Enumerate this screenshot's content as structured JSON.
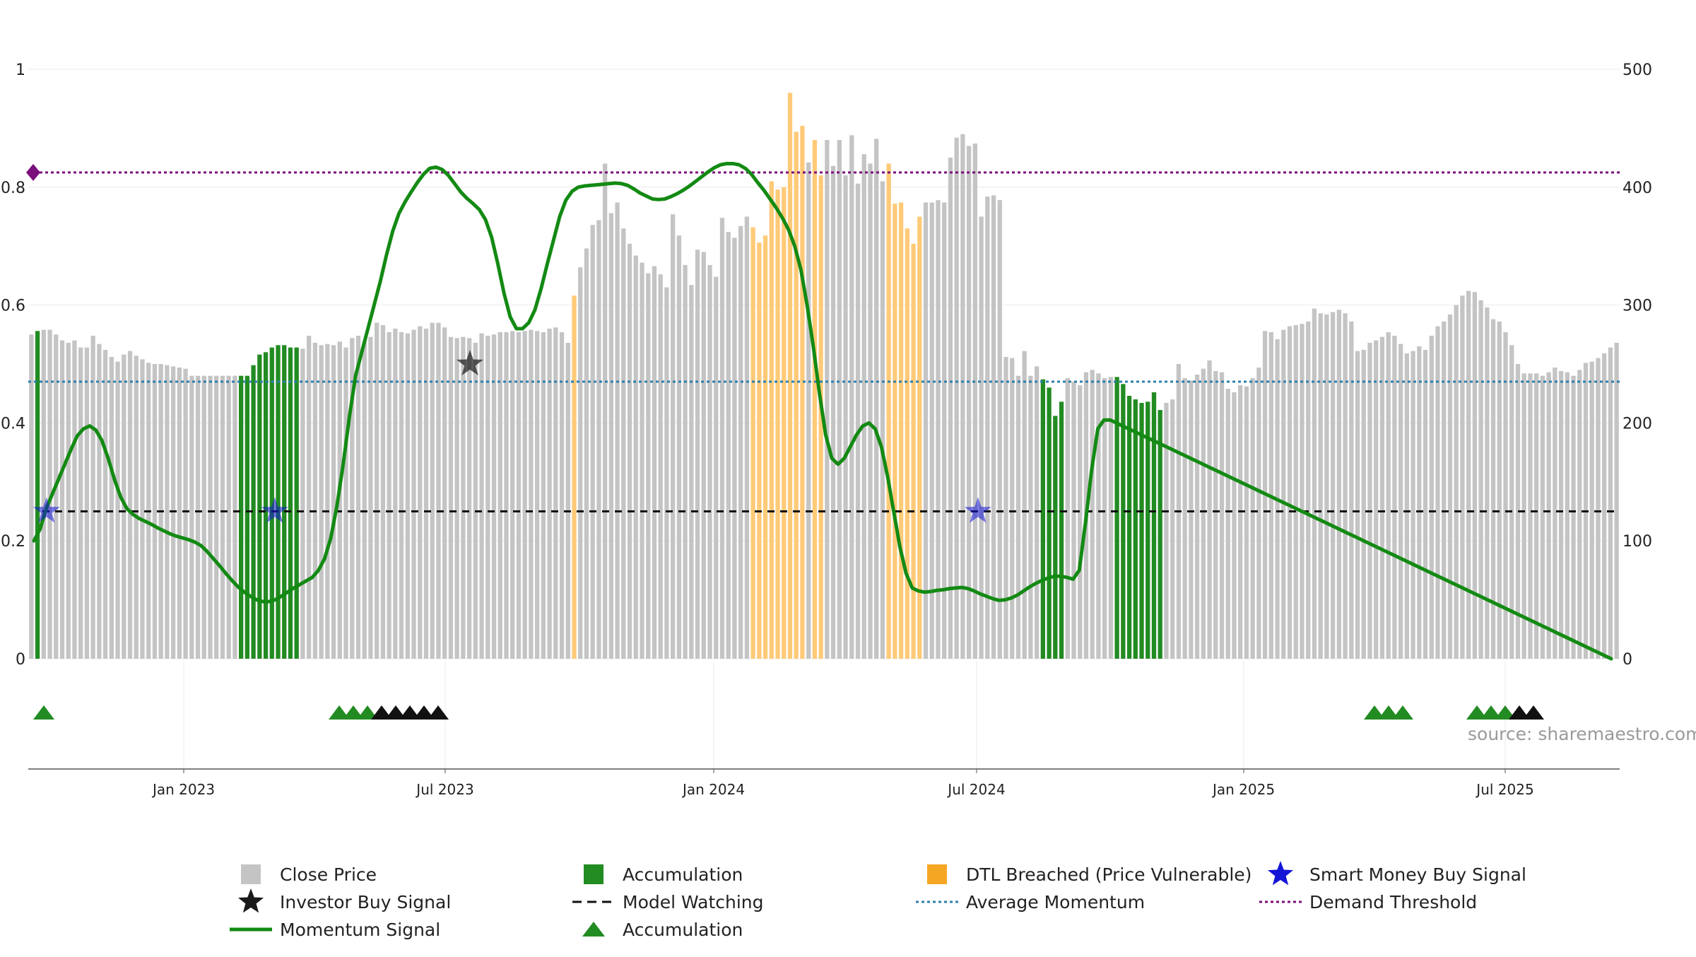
{
  "chart_data": {
    "type": "bar",
    "source_text": "source: sharemaestro.com",
    "x_ticks": [
      "Jan 2023",
      "Jul 2023",
      "Jan 2024",
      "Jul 2024",
      "Jan 2025",
      "Jul 2025"
    ],
    "left_axis": {
      "ylim": [
        0,
        1
      ],
      "ticks": [
        "0",
        "0.2",
        "0.4",
        "0.6",
        "0.8",
        "1"
      ]
    },
    "right_axis": {
      "ylim": [
        0,
        500
      ],
      "ticks": [
        "0",
        "100",
        "200",
        "300",
        "400",
        "500"
      ]
    },
    "colors": {
      "close_price": "#c4c4c4",
      "accumulation": "#228b22",
      "dtl_breached": "#ffca78",
      "momentum": "#138a13",
      "average_momentum": "#2e7fae",
      "demand_threshold": "#7b0f7b",
      "model_watching": "#111111",
      "smart_money": "#1515d6",
      "investor": "#1a1a1a"
    },
    "close_price": [
      275,
      278,
      279,
      279,
      275,
      270,
      268,
      270,
      264,
      264,
      274,
      267,
      262,
      256,
      252,
      258,
      261,
      257,
      254,
      251,
      250,
      250,
      249,
      248,
      247,
      246,
      240,
      240,
      240,
      240,
      240,
      240,
      240,
      240,
      240,
      240,
      249,
      258,
      260,
      264,
      266,
      266,
      264,
      264,
      263,
      274,
      268,
      266,
      267,
      266,
      269,
      264,
      272,
      274,
      269,
      273,
      285,
      283,
      277,
      280,
      277,
      276,
      279,
      282,
      280,
      285,
      285,
      281,
      273,
      272,
      273,
      272,
      268,
      276,
      274,
      275,
      277,
      277,
      278,
      277,
      278,
      279,
      278,
      277,
      280,
      281,
      277,
      268,
      308,
      332,
      348,
      368,
      372,
      420,
      378,
      387,
      365,
      352,
      342,
      336,
      327,
      333,
      326,
      315,
      377,
      359,
      334,
      317,
      347,
      345,
      334,
      324,
      374,
      362,
      357,
      367,
      375,
      366,
      353,
      359,
      405,
      398,
      400,
      480,
      447,
      452,
      421,
      440,
      410,
      440,
      418,
      440,
      410,
      444,
      403,
      428,
      420,
      441,
      405,
      420,
      386,
      387,
      365,
      352,
      375,
      387,
      387,
      389,
      387,
      425,
      442,
      445,
      435,
      437,
      375,
      392,
      393,
      389,
      256,
      255,
      240,
      261,
      240,
      248,
      237,
      230,
      206,
      218,
      238,
      235,
      232,
      243,
      245,
      242,
      238,
      239,
      239,
      233,
      223,
      220,
      217,
      218,
      226,
      211,
      217,
      220,
      250,
      238,
      236,
      241,
      246,
      253,
      244,
      243,
      229,
      226,
      232,
      231,
      238,
      247,
      278,
      277,
      271,
      279,
      282,
      283,
      284,
      286,
      297,
      293,
      292,
      294,
      296,
      293,
      286,
      261,
      262,
      268,
      270,
      273,
      277,
      274,
      267,
      259,
      261,
      265,
      262,
      274,
      282,
      286,
      292,
      300,
      308,
      312,
      311,
      304,
      298,
      288,
      286,
      277,
      266,
      250,
      242,
      242,
      242,
      240,
      243,
      247,
      244,
      243,
      240,
      245,
      251,
      252,
      255,
      259,
      264,
      268
    ],
    "bar_types": [
      "close",
      "acc",
      "close",
      "close",
      "close",
      "close",
      "close",
      "close",
      "close",
      "close",
      "close",
      "close",
      "close",
      "close",
      "close",
      "close",
      "close",
      "close",
      "close",
      "close",
      "close",
      "close",
      "close",
      "close",
      "close",
      "close",
      "close",
      "close",
      "close",
      "close",
      "close",
      "close",
      "close",
      "close",
      "acc",
      "acc",
      "acc",
      "acc",
      "acc",
      "acc",
      "acc",
      "acc",
      "acc",
      "acc",
      "close",
      "close",
      "close",
      "close",
      "close",
      "close",
      "close",
      "close",
      "close",
      "close",
      "close",
      "close",
      "close",
      "close",
      "close",
      "close",
      "close",
      "close",
      "close",
      "close",
      "close",
      "close",
      "close",
      "close",
      "close",
      "close",
      "close",
      "close",
      "close",
      "close",
      "close",
      "close",
      "close",
      "close",
      "close",
      "close",
      "close",
      "close",
      "close",
      "close",
      "close",
      "close",
      "close",
      "close",
      "close",
      "close",
      "close",
      "close",
      "close",
      "close",
      "close",
      "close",
      "close",
      "close",
      "close",
      "close",
      "close",
      "close",
      "close",
      "close",
      "close",
      "close",
      "close",
      "close",
      "close",
      "close",
      "close",
      "close",
      "close",
      "close",
      "close",
      "close",
      "close",
      "close",
      "close",
      "close",
      "close",
      "close",
      "close",
      "close",
      "close",
      "close",
      "close",
      "close",
      "close",
      "close",
      "close",
      "close",
      "close",
      "close",
      "close",
      "close",
      "close",
      "close",
      "close",
      "close",
      "close",
      "close",
      "close",
      "close",
      "close",
      "close",
      "close",
      "close",
      "close",
      "close",
      "close",
      "close",
      "close",
      "close",
      "close",
      "close",
      "close",
      "close",
      "close",
      "close",
      "close",
      "close",
      "close",
      "close",
      "close",
      "close",
      "close",
      "close",
      "close",
      "close",
      "close",
      "close",
      "close",
      "close",
      "close",
      "close",
      "close",
      "close",
      "close",
      "close",
      "close",
      "close",
      "close",
      "close",
      "close",
      "close",
      "close",
      "close",
      "close",
      "close",
      "close",
      "close",
      "close",
      "close",
      "close",
      "close",
      "close",
      "close",
      "close",
      "close",
      "close",
      "close",
      "close",
      "close",
      "close",
      "close",
      "close",
      "close",
      "close",
      "close",
      "close",
      "close",
      "close",
      "close",
      "close",
      "close",
      "close",
      "close",
      "close",
      "close",
      "close",
      "close",
      "close",
      "close",
      "close",
      "close",
      "close",
      "close",
      "close",
      "close",
      "close",
      "close",
      "close",
      "close",
      "close",
      "close",
      "close",
      "close",
      "close",
      "close",
      "close",
      "close",
      "close",
      "close",
      "close",
      "close",
      "close",
      "close",
      "close",
      "close",
      "close",
      "close",
      "close",
      "close",
      "close",
      "close",
      "close",
      "close",
      "close",
      "close",
      "close",
      "close",
      "close",
      "close",
      "close",
      "close",
      "close",
      "close",
      "close",
      "close"
    ],
    "momentum_signal": [
      0.2,
      0.22,
      0.255,
      0.28,
      0.305,
      0.33,
      0.355,
      0.378,
      0.39,
      0.395,
      0.388,
      0.37,
      0.34,
      0.305,
      0.275,
      0.255,
      0.245,
      0.238,
      0.233,
      0.228,
      0.222,
      0.217,
      0.212,
      0.208,
      0.205,
      0.202,
      0.198,
      0.192,
      0.182,
      0.17,
      0.158,
      0.145,
      0.133,
      0.122,
      0.113,
      0.106,
      0.1,
      0.097,
      0.097,
      0.1,
      0.106,
      0.113,
      0.12,
      0.126,
      0.132,
      0.138,
      0.15,
      0.17,
      0.205,
      0.26,
      0.33,
      0.41,
      0.48,
      0.52,
      0.56,
      0.6,
      0.64,
      0.685,
      0.725,
      0.755,
      0.775,
      0.792,
      0.808,
      0.822,
      0.832,
      0.834,
      0.83,
      0.82,
      0.806,
      0.792,
      0.781,
      0.772,
      0.762,
      0.745,
      0.715,
      0.67,
      0.62,
      0.58,
      0.56,
      0.56,
      0.57,
      0.592,
      0.628,
      0.67,
      0.71,
      0.75,
      0.778,
      0.793,
      0.8,
      0.802,
      0.803,
      0.804,
      0.805,
      0.806,
      0.807,
      0.806,
      0.803,
      0.797,
      0.79,
      0.785,
      0.78,
      0.779,
      0.78,
      0.784,
      0.789,
      0.795,
      0.802,
      0.81,
      0.818,
      0.826,
      0.833,
      0.838,
      0.84,
      0.84,
      0.838,
      0.832,
      0.822,
      0.808,
      0.795,
      0.78,
      0.765,
      0.748,
      0.728,
      0.7,
      0.66,
      0.6,
      0.53,
      0.45,
      0.38,
      0.34,
      0.33,
      0.34,
      0.36,
      0.38,
      0.395,
      0.4,
      0.39,
      0.36,
      0.31,
      0.25,
      0.19,
      0.145,
      0.12,
      0.115,
      0.113,
      0.114,
      0.116,
      0.117,
      0.119,
      0.12,
      0.121,
      0.119,
      0.115,
      0.11,
      0.106,
      0.102,
      0.099,
      0.1,
      0.103,
      0.108,
      0.115,
      0.122,
      0.128,
      0.133,
      0.137,
      0.14,
      0.14,
      0.138,
      0.135,
      0.15,
      0.23,
      0.32,
      0.39,
      0.405,
      0.405,
      0.4,
      0.395,
      0.39,
      0.385,
      0.38,
      0.375,
      0.37,
      0.365,
      0.36,
      0.355,
      0.35,
      0.345,
      0.34,
      0.335,
      0.33,
      0.325,
      0.32,
      0.315,
      0.31,
      0.305,
      0.3,
      0.295,
      0.29,
      0.285,
      0.28,
      0.275,
      0.27,
      0.265,
      0.26,
      0.255,
      0.25,
      0.245,
      0.24,
      0.235,
      0.23,
      0.225,
      0.22,
      0.215,
      0.21,
      0.205,
      0.2,
      0.195,
      0.19,
      0.185,
      0.18,
      0.175,
      0.17,
      0.165,
      0.16,
      0.155,
      0.15,
      0.145,
      0.14,
      0.135,
      0.13,
      0.125,
      0.12,
      0.115,
      0.11,
      0.105,
      0.1,
      0.095,
      0.09,
      0.085,
      0.08,
      0.075,
      0.07,
      0.065,
      0.06,
      0.055,
      0.05,
      0.045,
      0.04,
      0.035,
      0.03,
      0.025,
      0.02,
      0.015,
      0.01,
      0.005,
      0.0
    ],
    "average_momentum": 0.47,
    "demand_threshold": 0.825,
    "model_watching_level": 0.25,
    "smart_money_signals_x": [
      2,
      39,
      153
    ],
    "investor_buy_signal_x": [
      43
    ],
    "legend": [
      {
        "label": "Close Price",
        "symbol": "square-gray"
      },
      {
        "label": "Accumulation",
        "symbol": "square-green"
      },
      {
        "label": "DTL Breached (Price Vulnerable)",
        "symbol": "square-orange"
      },
      {
        "label": "Smart Money Buy Signal",
        "symbol": "star-blue"
      },
      {
        "label": "Investor Buy Signal",
        "symbol": "star-black"
      },
      {
        "label": "Model Watching",
        "symbol": "dash-black"
      },
      {
        "label": "Average Momentum",
        "symbol": "dot-blue"
      },
      {
        "label": "Demand Threshold",
        "symbol": "dot-purple"
      },
      {
        "label": "Momentum Signal",
        "symbol": "line-green"
      },
      {
        "label": "Accumulation",
        "symbol": "triangle-green"
      }
    ]
  }
}
